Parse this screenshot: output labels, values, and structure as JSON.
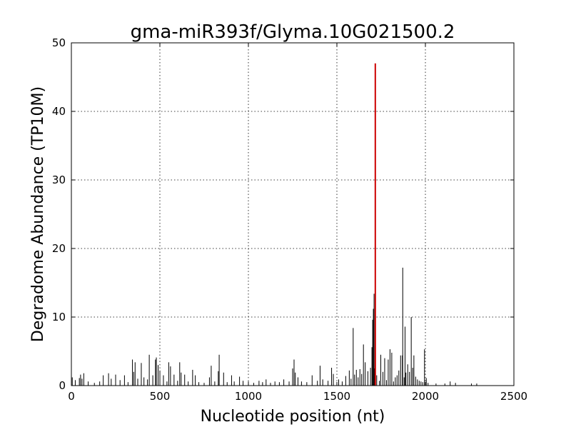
{
  "chart_data": {
    "type": "line",
    "title": "gma-miR393f/Glyma.10G021500.2",
    "xlabel": "Nucleotide position (nt)",
    "ylabel": "Degradome Abundance (TP10M)",
    "xlim": [
      0,
      2500
    ],
    "ylim": [
      0,
      50
    ],
    "xticks": [
      0,
      500,
      1000,
      1500,
      2000,
      2500
    ],
    "yticks": [
      0,
      10,
      20,
      30,
      40,
      50
    ],
    "grid": true,
    "colors": {
      "profile": "#000000",
      "target_site": "#cc0000"
    },
    "profile": {
      "x": [
        5,
        22,
        45,
        52,
        60,
        70,
        95,
        130,
        160,
        180,
        210,
        225,
        250,
        275,
        300,
        320,
        345,
        352,
        360,
        375,
        395,
        410,
        430,
        440,
        460,
        475,
        480,
        490,
        500,
        520,
        540,
        550,
        560,
        580,
        600,
        612,
        620,
        640,
        660,
        685,
        700,
        720,
        750,
        780,
        790,
        810,
        830,
        835,
        860,
        880,
        905,
        920,
        950,
        970,
        1000,
        1030,
        1060,
        1080,
        1100,
        1125,
        1150,
        1175,
        1200,
        1230,
        1250,
        1258,
        1265,
        1280,
        1300,
        1330,
        1360,
        1390,
        1405,
        1420,
        1450,
        1470,
        1480,
        1510,
        1530,
        1550,
        1570,
        1580,
        1592,
        1600,
        1610,
        1620,
        1630,
        1640,
        1650,
        1660,
        1675,
        1690,
        1698,
        1702,
        1706,
        1710,
        1712,
        1725,
        1740,
        1748,
        1760,
        1770,
        1780,
        1790,
        1800,
        1810,
        1820,
        1830,
        1840,
        1850,
        1860,
        1870,
        1872,
        1880,
        1885,
        1890,
        1900,
        1910,
        1920,
        1928,
        1935,
        1945,
        1955,
        1965,
        1975,
        1985,
        1995,
        2005,
        2015,
        2060,
        2110,
        2140,
        2170,
        2260,
        2290
      ],
      "y": [
        1.2,
        0.8,
        1.1,
        1.6,
        1.0,
        1.8,
        0.6,
        0.4,
        0.6,
        1.5,
        1.8,
        1.0,
        1.6,
        0.8,
        1.5,
        0.5,
        3.8,
        2.0,
        3.4,
        1.0,
        3.3,
        1.2,
        0.9,
        4.5,
        1.5,
        3.8,
        4.1,
        3.0,
        2.2,
        1.5,
        0.6,
        3.4,
        2.8,
        1.6,
        0.7,
        3.4,
        1.9,
        1.6,
        0.6,
        2.3,
        1.5,
        0.5,
        0.4,
        1.2,
        2.9,
        0.6,
        2.1,
        4.5,
        1.9,
        0.5,
        1.5,
        0.6,
        1.3,
        0.7,
        0.6,
        0.4,
        0.7,
        0.5,
        0.9,
        0.4,
        0.6,
        0.5,
        0.9,
        0.6,
        2.5,
        3.8,
        1.9,
        1.2,
        0.6,
        0.5,
        1.5,
        0.7,
        2.9,
        0.9,
        0.7,
        2.6,
        1.7,
        0.9,
        0.6,
        1.4,
        2.2,
        1.0,
        8.4,
        1.6,
        2.3,
        1.2,
        2.4,
        1.7,
        6.0,
        3.4,
        2.1,
        2.6,
        5.6,
        9.6,
        11.2,
        13.4,
        2.5,
        1.5,
        0.7,
        4.5,
        2.0,
        4.0,
        0.8,
        3.8,
        5.3,
        4.8,
        0.6,
        1.2,
        1.5,
        2.2,
        4.4,
        4.4,
        17.2,
        1.2,
        8.6,
        1.9,
        3.1,
        2.0,
        10.0,
        2.6,
        4.4,
        1.3,
        0.9,
        0.7,
        0.6,
        0.5,
        5.3,
        1.1,
        0.4,
        0.3,
        0.3,
        0.6,
        0.4,
        0.3,
        0.3
      ]
    },
    "target_site": {
      "x": 1717,
      "y": 47
    }
  }
}
